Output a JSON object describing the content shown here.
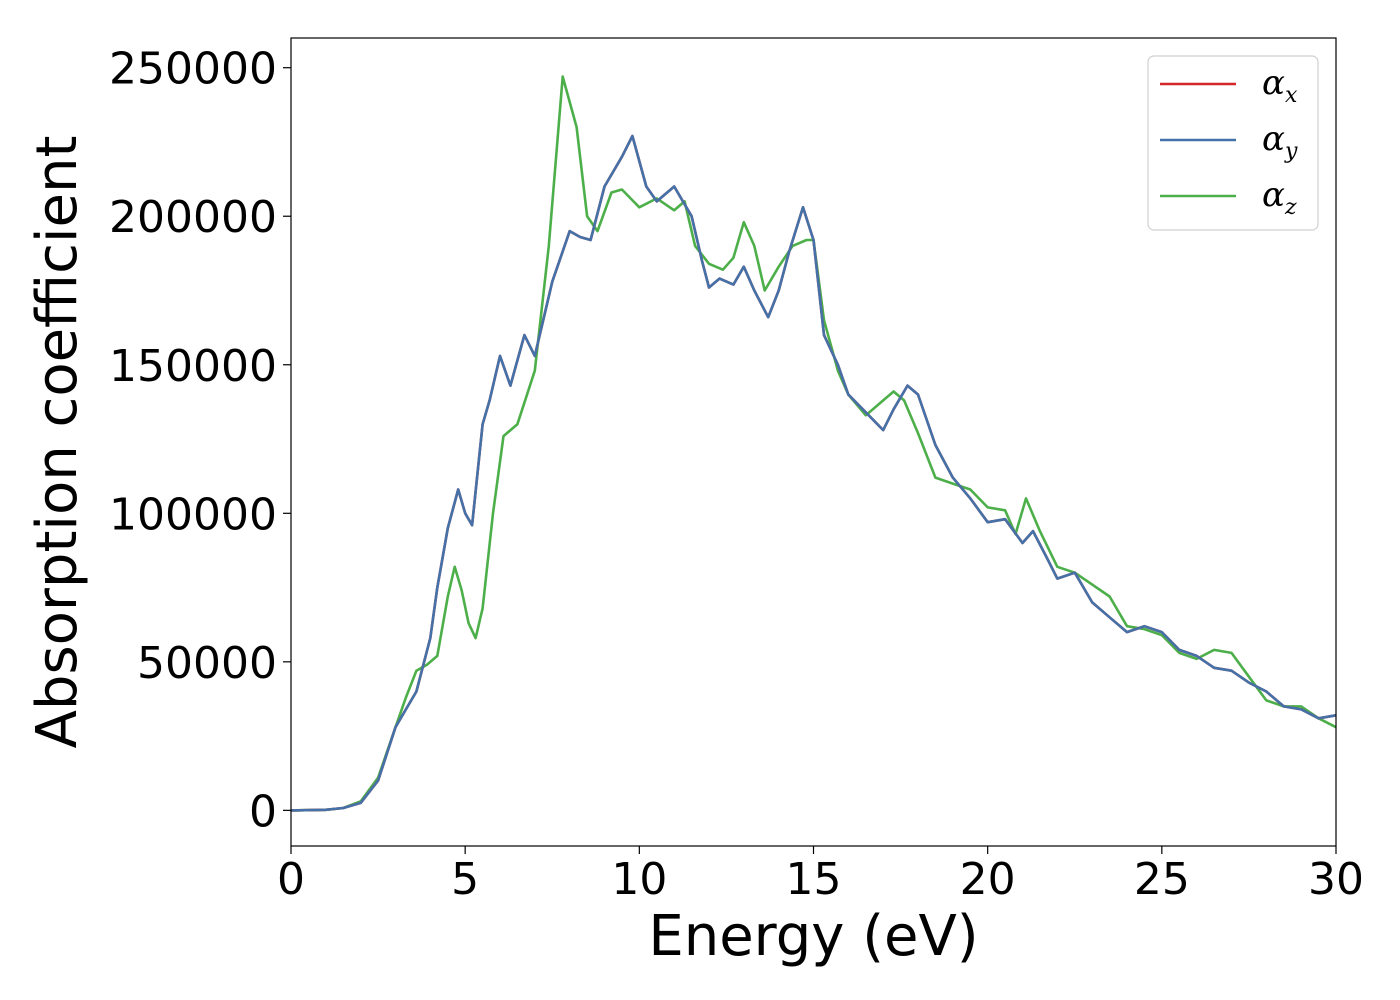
{
  "chart_data": {
    "type": "line",
    "xlabel": "Energy (eV)",
    "ylabel": "Absorption coefficient",
    "xlim": [
      0,
      30
    ],
    "ylim": [
      -12000,
      260000
    ],
    "xticks": [
      0,
      5,
      10,
      15,
      20,
      25,
      30
    ],
    "xtick_labels": [
      "0",
      "5",
      "10",
      "15",
      "20",
      "25",
      "30"
    ],
    "yticks": [
      0,
      50000,
      100000,
      150000,
      200000,
      250000
    ],
    "ytick_labels": [
      "0",
      "50000",
      "100000",
      "150000",
      "200000",
      "250000"
    ],
    "grid": false,
    "legend_position": "top-right",
    "series": [
      {
        "name": "α_x",
        "label_main": "α",
        "label_sub": "x",
        "color": "#d62728",
        "x": [
          0,
          1,
          1.5,
          2,
          2.5,
          3,
          3.3,
          3.6,
          4,
          4.2,
          4.5,
          4.8,
          5.0,
          5.2,
          5.5,
          5.7,
          6.0,
          6.3,
          6.7,
          7.0,
          7.5,
          8.0,
          8.3,
          8.6,
          9.0,
          9.5,
          9.8,
          10.2,
          10.5,
          11.0,
          11.5,
          11.8,
          12.0,
          12.3,
          12.7,
          13.0,
          13.3,
          13.7,
          14.0,
          14.3,
          14.7,
          15.0,
          15.3,
          15.7,
          16.0,
          16.5,
          17.0,
          17.3,
          17.7,
          18.0,
          18.5,
          19.0,
          19.5,
          20.0,
          20.5,
          21.0,
          21.3,
          21.7,
          22.0,
          22.5,
          23.0,
          23.5,
          24.0,
          24.5,
          25.0,
          25.5,
          26.0,
          26.5,
          27.0,
          27.5,
          28.0,
          28.5,
          29.0,
          29.5,
          30.0
        ],
        "y": [
          0,
          200,
          800,
          2500,
          10000,
          28000,
          34000,
          40000,
          58000,
          75000,
          95000,
          108000,
          100000,
          96000,
          130000,
          138000,
          153000,
          143000,
          160000,
          153000,
          178000,
          195000,
          193000,
          192000,
          210000,
          220000,
          227000,
          210000,
          205000,
          210000,
          200000,
          185000,
          176000,
          179000,
          177000,
          183000,
          175000,
          166000,
          175000,
          188000,
          203000,
          192000,
          160000,
          150000,
          140000,
          134000,
          128000,
          135000,
          143000,
          140000,
          123000,
          112000,
          105000,
          97000,
          98000,
          90000,
          94000,
          85000,
          78000,
          80000,
          70000,
          65000,
          60000,
          62000,
          60000,
          54000,
          52000,
          48000,
          47000,
          43000,
          40000,
          35000,
          34000,
          31000,
          32000
        ]
      },
      {
        "name": "α_y",
        "label_main": "α",
        "label_sub": "y",
        "color": "#4472a8",
        "x": [
          0,
          1,
          1.5,
          2,
          2.5,
          3,
          3.3,
          3.6,
          4,
          4.2,
          4.5,
          4.8,
          5.0,
          5.2,
          5.5,
          5.7,
          6.0,
          6.3,
          6.7,
          7.0,
          7.5,
          8.0,
          8.3,
          8.6,
          9.0,
          9.5,
          9.8,
          10.2,
          10.5,
          11.0,
          11.5,
          11.8,
          12.0,
          12.3,
          12.7,
          13.0,
          13.3,
          13.7,
          14.0,
          14.3,
          14.7,
          15.0,
          15.3,
          15.7,
          16.0,
          16.5,
          17.0,
          17.3,
          17.7,
          18.0,
          18.5,
          19.0,
          19.5,
          20.0,
          20.5,
          21.0,
          21.3,
          21.7,
          22.0,
          22.5,
          23.0,
          23.5,
          24.0,
          24.5,
          25.0,
          25.5,
          26.0,
          26.5,
          27.0,
          27.5,
          28.0,
          28.5,
          29.0,
          29.5,
          30.0
        ],
        "y": [
          0,
          200,
          800,
          2500,
          10000,
          28000,
          34000,
          40000,
          58000,
          75000,
          95000,
          108000,
          100000,
          96000,
          130000,
          138000,
          153000,
          143000,
          160000,
          153000,
          178000,
          195000,
          193000,
          192000,
          210000,
          220000,
          227000,
          210000,
          205000,
          210000,
          200000,
          185000,
          176000,
          179000,
          177000,
          183000,
          175000,
          166000,
          175000,
          188000,
          203000,
          192000,
          160000,
          150000,
          140000,
          134000,
          128000,
          135000,
          143000,
          140000,
          123000,
          112000,
          105000,
          97000,
          98000,
          90000,
          94000,
          85000,
          78000,
          80000,
          70000,
          65000,
          60000,
          62000,
          60000,
          54000,
          52000,
          48000,
          47000,
          43000,
          40000,
          35000,
          34000,
          31000,
          32000
        ]
      },
      {
        "name": "α_z",
        "label_main": "α",
        "label_sub": "z",
        "color": "#4daf4a",
        "x": [
          0,
          1,
          1.5,
          2,
          2.5,
          3,
          3.3,
          3.6,
          3.9,
          4.2,
          4.5,
          4.7,
          4.9,
          5.1,
          5.3,
          5.5,
          5.8,
          6.1,
          6.5,
          7.0,
          7.4,
          7.8,
          8.2,
          8.5,
          8.8,
          9.2,
          9.5,
          10.0,
          10.5,
          11.0,
          11.3,
          11.6,
          12.0,
          12.4,
          12.7,
          13.0,
          13.3,
          13.6,
          14.0,
          14.4,
          14.8,
          15.0,
          15.3,
          15.7,
          16.0,
          16.5,
          17.0,
          17.3,
          17.6,
          18.0,
          18.5,
          19.0,
          19.5,
          20.0,
          20.5,
          20.8,
          21.1,
          21.5,
          22.0,
          22.5,
          23.0,
          23.5,
          24.0,
          24.5,
          25.0,
          25.5,
          26.0,
          26.5,
          27.0,
          27.5,
          28.0,
          28.5,
          29.0,
          29.5,
          30.0
        ],
        "y": [
          0,
          200,
          800,
          3000,
          11000,
          28000,
          38000,
          47000,
          49000,
          52000,
          72000,
          82000,
          74000,
          63000,
          58000,
          68000,
          100000,
          126000,
          130000,
          148000,
          190000,
          247000,
          230000,
          200000,
          195000,
          208000,
          209000,
          203000,
          206000,
          202000,
          205000,
          190000,
          184000,
          182000,
          186000,
          198000,
          190000,
          175000,
          183000,
          190000,
          192000,
          192000,
          165000,
          148000,
          140000,
          133000,
          138000,
          141000,
          138000,
          127000,
          112000,
          110000,
          108000,
          102000,
          101000,
          93000,
          105000,
          94000,
          82000,
          80000,
          76000,
          72000,
          62000,
          61000,
          59000,
          53000,
          51000,
          54000,
          53000,
          45000,
          37000,
          35000,
          35000,
          31000,
          28000
        ]
      }
    ]
  }
}
